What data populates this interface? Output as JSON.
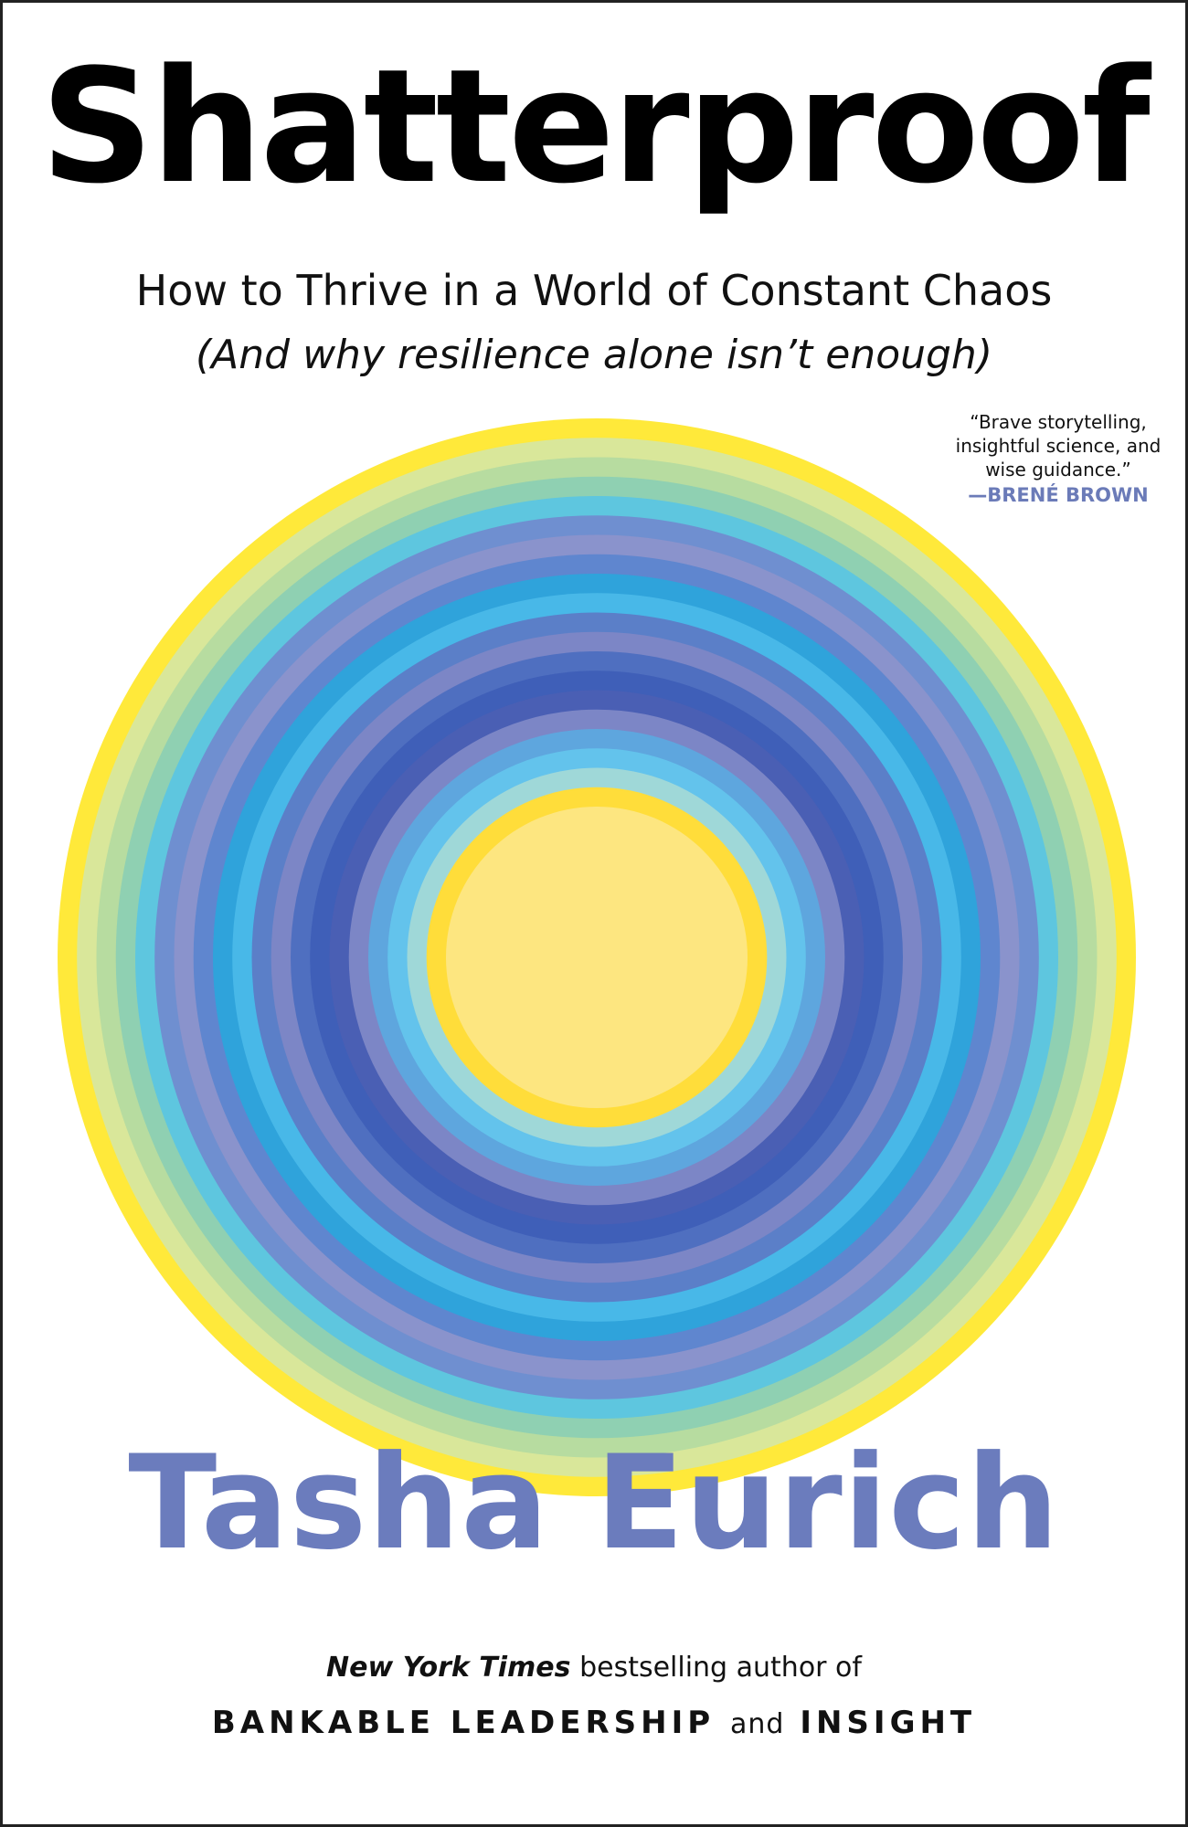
{
  "title": "Shatterproof",
  "subtitle": "How to Thrive in a World of Constant Chaos",
  "subtitle_2": "(And why resilience alone isn’t enough)",
  "blurb": {
    "lines": [
      "“Brave storytelling,",
      "insightful science, and",
      "wise guidance.”"
    ],
    "attribution": "—BRENÉ BROWN"
  },
  "author": "Tasha Eurich",
  "tagline": {
    "publication": "New York Times",
    "rest": "bestselling author of"
  },
  "previous_books": {
    "first": "BANKABLE LEADERSHIP",
    "connector": "and",
    "second": "INSIGHT"
  },
  "art": {
    "ring_colors": [
      "#ffe93a",
      "#d9e79a",
      "#b7dca0",
      "#8fd0b2",
      "#5ec6df",
      "#6f8fd0",
      "#8a93cc",
      "#5f86cf",
      "#2fa3db",
      "#48b8e8",
      "#5b7fc8",
      "#7c86c6",
      "#4f6fc0",
      "#3f5fb8",
      "#4a5fb4",
      "#7c86c6",
      "#5ea6de",
      "#63c3ec",
      "#9fd8d8",
      "#ffdd3a",
      "#fde680"
    ]
  }
}
